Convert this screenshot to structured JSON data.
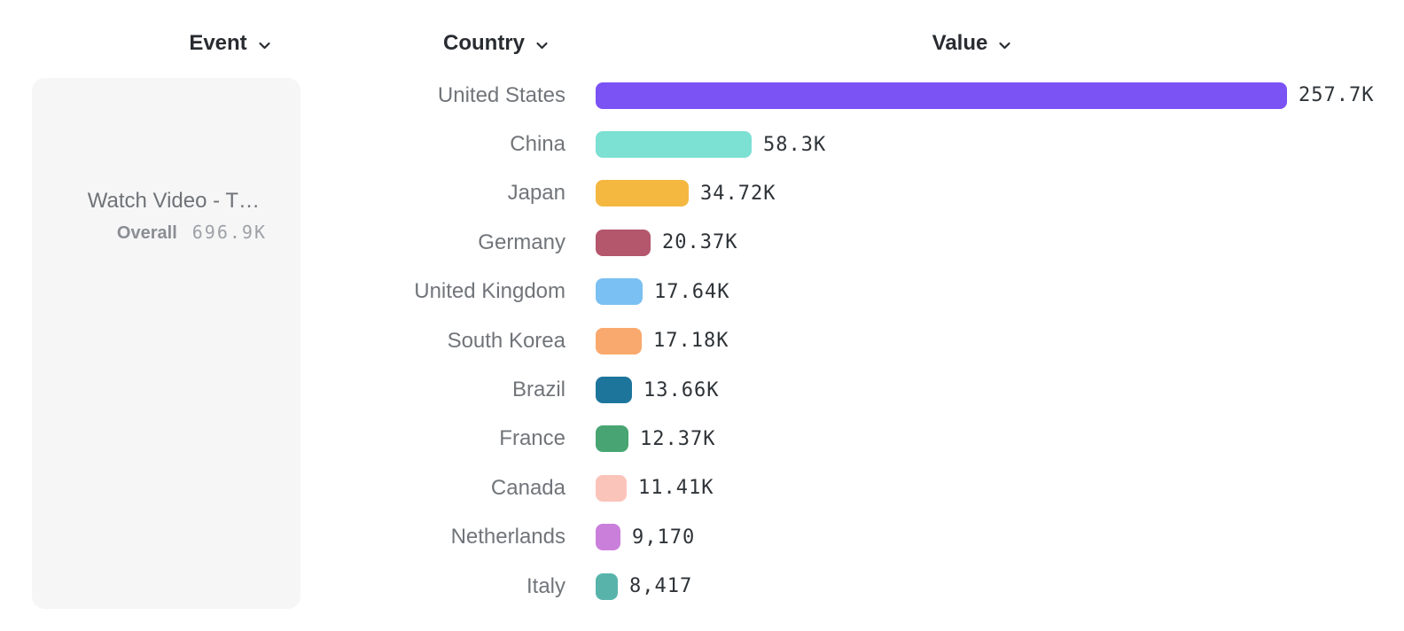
{
  "columns": {
    "event": {
      "label": "Event",
      "icon": "chevron-down-icon"
    },
    "country": {
      "label": "Country",
      "icon": "chevron-down-icon"
    },
    "value": {
      "label": "Value",
      "icon": "chevron-down-icon"
    }
  },
  "event_card": {
    "name": "Watch Video - T…",
    "metric_label": "Overall",
    "metric_value": "696.9K"
  },
  "chart_data": {
    "type": "bar",
    "orientation": "horizontal",
    "title": "",
    "xlabel": "",
    "ylabel": "",
    "grid": false,
    "legend": "none",
    "categories": [
      "United States",
      "China",
      "Japan",
      "Germany",
      "United Kingdom",
      "South Korea",
      "Brazil",
      "France",
      "Canada",
      "Netherlands",
      "Italy"
    ],
    "values": [
      257700,
      58300,
      34720,
      20370,
      17640,
      17180,
      13660,
      12370,
      11410,
      9170,
      8417
    ],
    "value_labels": [
      "257.7K",
      "58.3K",
      "34.72K",
      "20.37K",
      "17.64K",
      "17.18K",
      "13.66K",
      "12.37K",
      "11.41K",
      "9,170",
      "8,417"
    ],
    "bar_colors": [
      "#7b52f4",
      "#7ce0d3",
      "#f4b841",
      "#b4566c",
      "#7bc0f2",
      "#f9a96e",
      "#1e759c",
      "#48a573",
      "#fbc4ba",
      "#ca80da",
      "#58b4aa"
    ],
    "max_value": 257700,
    "colors": {
      "header_text": "#282c31",
      "country_label": "#71757a",
      "value_label": "#2e3338",
      "card_background": "#f6f6f7"
    }
  }
}
